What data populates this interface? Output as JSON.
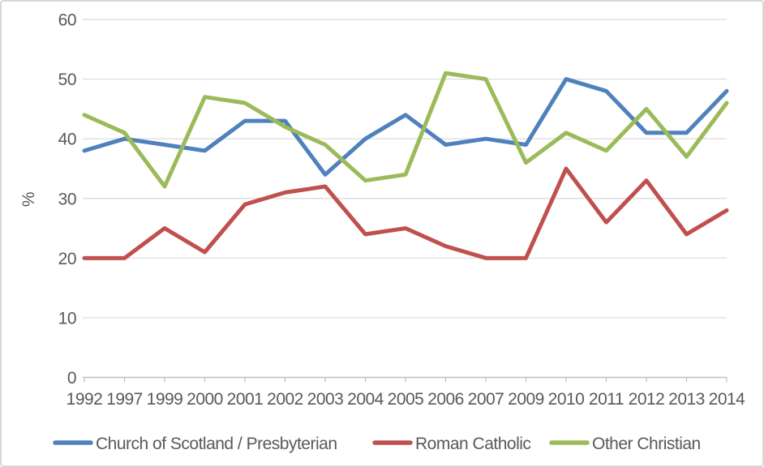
{
  "chart_data": {
    "type": "line",
    "title": "",
    "xlabel": "",
    "ylabel": "%",
    "ylim": [
      0,
      60
    ],
    "ytick_step": 10,
    "yticks": [
      0,
      10,
      20,
      30,
      40,
      50,
      60
    ],
    "grid": true,
    "legend_position": "bottom",
    "categories": [
      "1992",
      "1997",
      "1999",
      "2000",
      "2001",
      "2002",
      "2003",
      "2004",
      "2005",
      "2006",
      "2007",
      "2009",
      "2010",
      "2011",
      "2012",
      "2013",
      "2014"
    ],
    "series": [
      {
        "name": "Church of Scotland / Presbyterian",
        "color": "#4F81BD",
        "values": [
          38,
          40,
          39,
          38,
          43,
          43,
          34,
          40,
          44,
          39,
          40,
          39,
          50,
          48,
          41,
          41,
          48
        ]
      },
      {
        "name": "Roman Catholic",
        "color": "#C0504D",
        "values": [
          20,
          20,
          25,
          21,
          29,
          31,
          32,
          24,
          25,
          22,
          20,
          20,
          35,
          26,
          33,
          24,
          28
        ]
      },
      {
        "name": "Other Christian",
        "color": "#9BBB59",
        "values": [
          44,
          41,
          32,
          47,
          46,
          42,
          39,
          33,
          34,
          51,
          50,
          36,
          41,
          38,
          45,
          37,
          46
        ]
      }
    ],
    "style_colors": {
      "gridline": "#D9D9D9",
      "axis_line": "#BFBFBF",
      "text": "#595959"
    }
  }
}
